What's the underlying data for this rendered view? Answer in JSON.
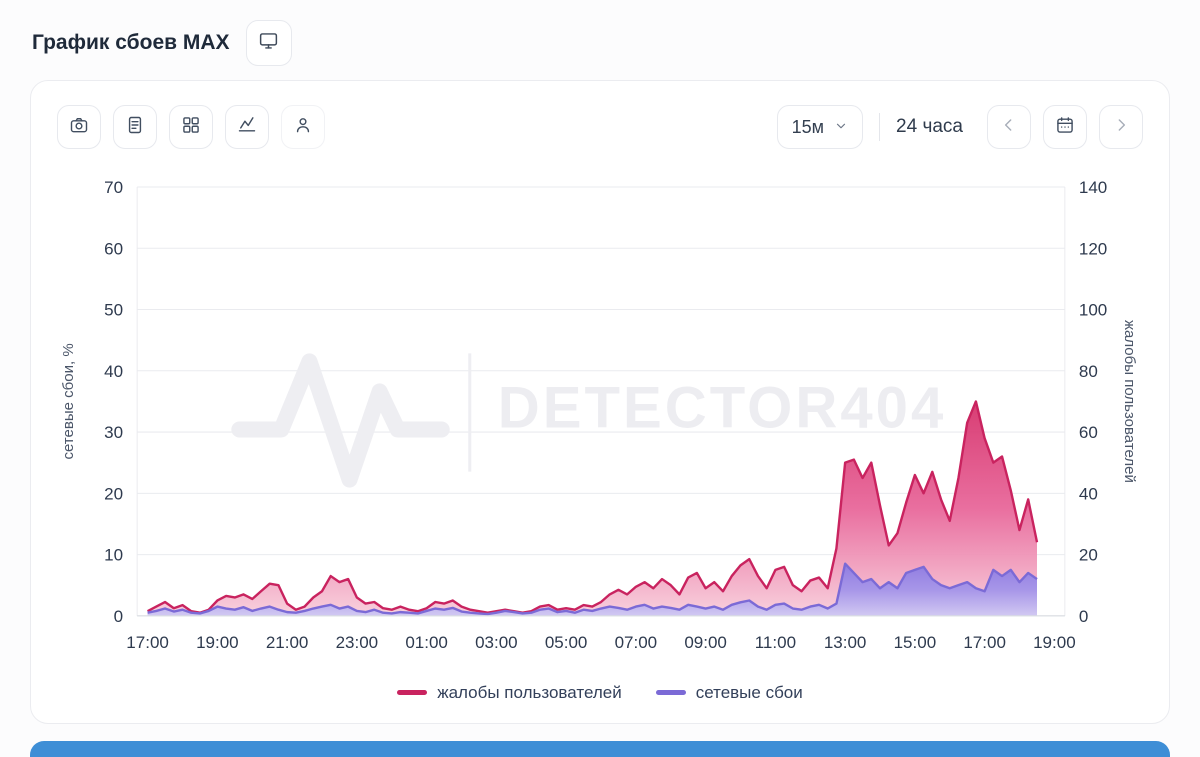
{
  "page": {
    "title": "График сбоев MAX"
  },
  "icons": {
    "title": [
      "monitor-icon"
    ],
    "toolbar": [
      "camera-icon",
      "document-icon",
      "grid-icon",
      "area-chart-icon",
      "user-icon"
    ],
    "controls": [
      "chevron-down-icon",
      "chevron-left-icon",
      "calendar-icon",
      "chevron-right-icon"
    ]
  },
  "toolbar": {
    "interval_select": {
      "value": "15м"
    },
    "range_label": "24 часа"
  },
  "chart_data": {
    "type": "area",
    "title": "График сбоев MAX",
    "watermark": "DETECTOR404",
    "grid": "horizontal",
    "legend_position": "bottom",
    "x_start_label": "17:00",
    "step_hours": 0.25,
    "x_range": [
      -0.3,
      26.3
    ],
    "x_tick_hours": [
      0,
      2,
      4,
      6,
      8,
      10,
      12,
      14,
      16,
      18,
      20,
      22,
      24,
      26
    ],
    "x_tick_labels": [
      "17:00",
      "19:00",
      "21:00",
      "23:00",
      "01:00",
      "03:00",
      "05:00",
      "07:00",
      "09:00",
      "11:00",
      "13:00",
      "15:00",
      "17:00",
      "19:00"
    ],
    "left_axis": {
      "label": "сетевые сбои, %",
      "range": [
        0,
        70
      ],
      "ticks": [
        0,
        10,
        20,
        30,
        40,
        50,
        60,
        70
      ]
    },
    "right_axis": {
      "label": "жалобы пользователей",
      "range": [
        0,
        140
      ],
      "ticks": [
        0,
        20,
        40,
        60,
        80,
        100,
        120,
        140
      ]
    },
    "series": [
      {
        "name": "жалобы пользователей",
        "axis": "right",
        "color": "#c9235f",
        "fill_gradient": [
          "#d6336c",
          "#e8679a",
          "#f8cfdc"
        ],
        "fill_opacity": 0.95,
        "values": [
          1.5,
          3,
          4.5,
          2.5,
          3.5,
          1.5,
          1,
          2,
          5,
          6.5,
          6,
          7,
          5.5,
          8,
          10.5,
          10,
          4,
          2,
          3,
          6,
          8,
          13,
          11,
          12,
          6,
          4,
          4.5,
          2.5,
          2,
          3,
          2,
          1.5,
          2.5,
          4.5,
          4,
          5,
          3,
          2,
          1.5,
          1,
          1.5,
          2,
          1.5,
          1,
          1.5,
          3,
          3.5,
          2,
          2.5,
          2,
          3.5,
          3,
          4.5,
          7,
          8.5,
          7,
          9.5,
          11,
          9,
          12,
          10,
          7,
          12.5,
          14,
          9,
          11,
          8,
          13,
          16.5,
          18.5,
          13,
          9,
          15,
          16,
          10,
          8,
          11.5,
          12.5,
          9,
          22,
          50,
          51,
          45,
          50,
          36,
          23,
          27,
          37,
          46,
          40,
          47,
          38,
          31,
          45,
          63,
          70,
          58,
          50,
          52,
          41,
          28,
          38,
          24
        ]
      },
      {
        "name": "сетевые сбои",
        "axis": "left",
        "color": "#7b6ad6",
        "fill_gradient": [
          "#8b7ae2",
          "#a394ea",
          "#cfc8f3"
        ],
        "fill_opacity": 0.95,
        "values": [
          0.5,
          0.8,
          1.2,
          0.7,
          1.0,
          0.5,
          0.4,
          0.8,
          1.5,
          1.2,
          1.0,
          1.4,
          0.8,
          1.2,
          1.5,
          1.0,
          0.6,
          0.5,
          0.8,
          1.2,
          1.5,
          1.8,
          1.2,
          1.5,
          0.8,
          0.6,
          1.0,
          0.5,
          0.4,
          0.6,
          0.5,
          0.4,
          0.8,
          1.2,
          1.0,
          1.3,
          0.7,
          0.5,
          0.4,
          0.3,
          0.5,
          0.8,
          0.6,
          0.4,
          0.5,
          1.0,
          1.2,
          0.6,
          0.8,
          0.5,
          1.0,
          0.8,
          1.2,
          1.5,
          1.3,
          1.0,
          1.5,
          1.8,
          1.2,
          1.5,
          1.3,
          1.0,
          1.8,
          1.5,
          1.2,
          1.5,
          1.0,
          1.8,
          2.2,
          2.5,
          1.5,
          1.0,
          1.8,
          2.0,
          1.2,
          1.0,
          1.5,
          1.8,
          1.2,
          2.0,
          8.5,
          7.0,
          5.5,
          6.0,
          4.5,
          5.5,
          4.5,
          7.0,
          7.5,
          8.0,
          6.0,
          5.0,
          4.5,
          5.0,
          5.5,
          4.5,
          4.0,
          7.5,
          6.5,
          7.5,
          5.5,
          7.0,
          6.0
        ]
      }
    ]
  }
}
